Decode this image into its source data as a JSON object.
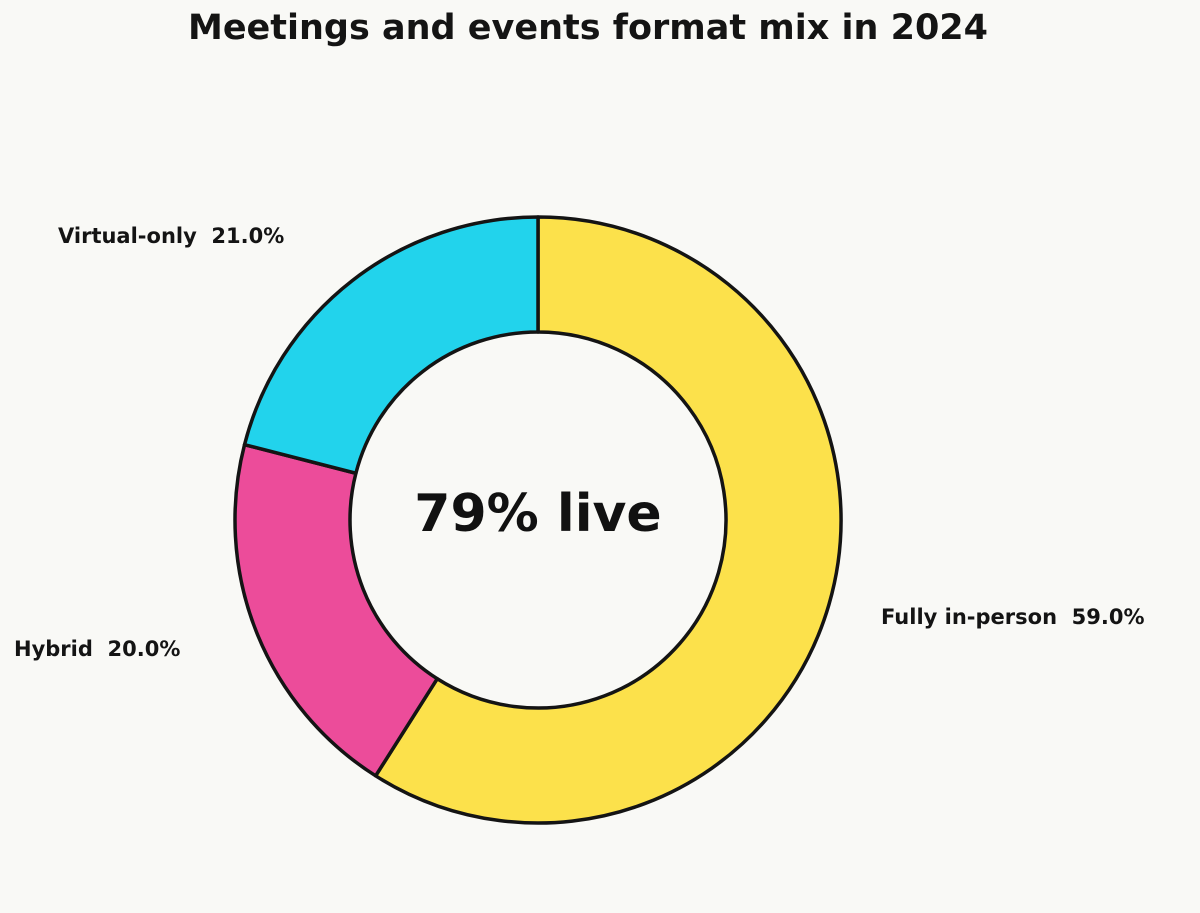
{
  "chart_data": {
    "type": "pie",
    "subtype": "donut",
    "title": "Meetings and events format mix in 2024",
    "center_text": "79% live",
    "start_angle": "12 o'clock",
    "direction": "clockwise",
    "slices": [
      {
        "label": "Fully in-person",
        "value": 59.0,
        "display": "Fully in-person  59.0%",
        "color": "#fce14b"
      },
      {
        "label": "Hybrid",
        "value": 20.0,
        "display": "Hybrid  20.0%",
        "color": "#ec4c9a"
      },
      {
        "label": "Virtual-only",
        "value": 21.0,
        "display": "Virtual-only  21.0%",
        "color": "#22d3ec"
      }
    ],
    "edge_color": "#141414",
    "background": "#f9f9f6"
  }
}
